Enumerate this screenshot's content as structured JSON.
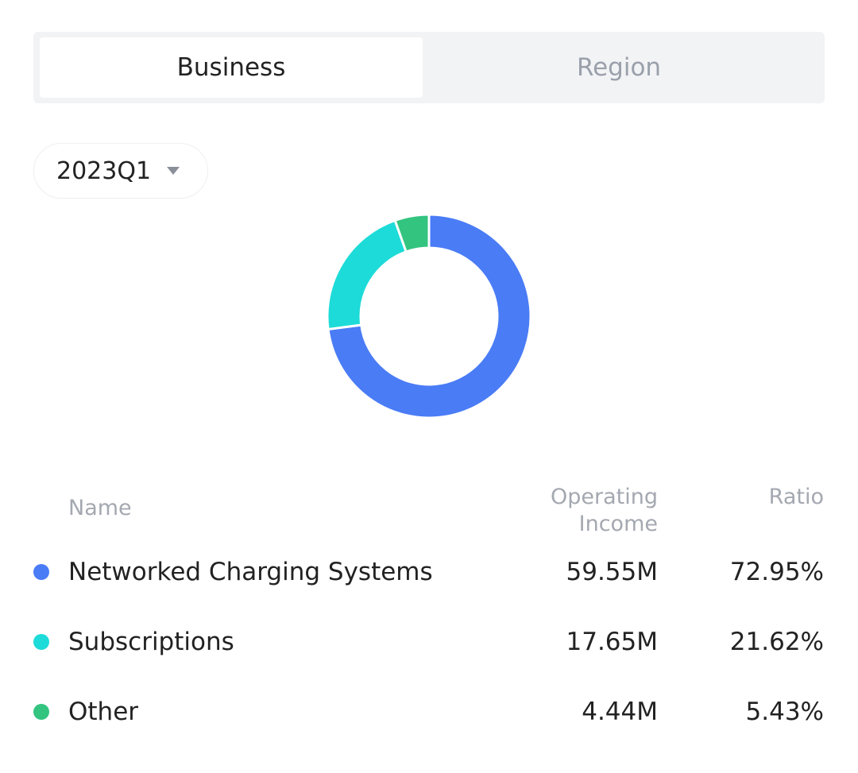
{
  "tabs": [
    "Business",
    "Region"
  ],
  "active_tab": 0,
  "period": "2023Q1",
  "chart_data": {
    "type": "pie",
    "donut": true,
    "categories": [
      "Networked Charging Systems",
      "Subscriptions",
      "Other"
    ],
    "colors": [
      "#4a7cf6",
      "#1ddbd8",
      "#33c480"
    ],
    "values": [
      72.95,
      21.62,
      5.43
    ],
    "value_labels": [
      "72.95%",
      "21.62%",
      "5.43%"
    ]
  },
  "table": {
    "headers": [
      "Name",
      "Operating Income",
      "Ratio"
    ],
    "income": [
      "59.55M",
      "17.65M",
      "4.44M"
    ]
  }
}
